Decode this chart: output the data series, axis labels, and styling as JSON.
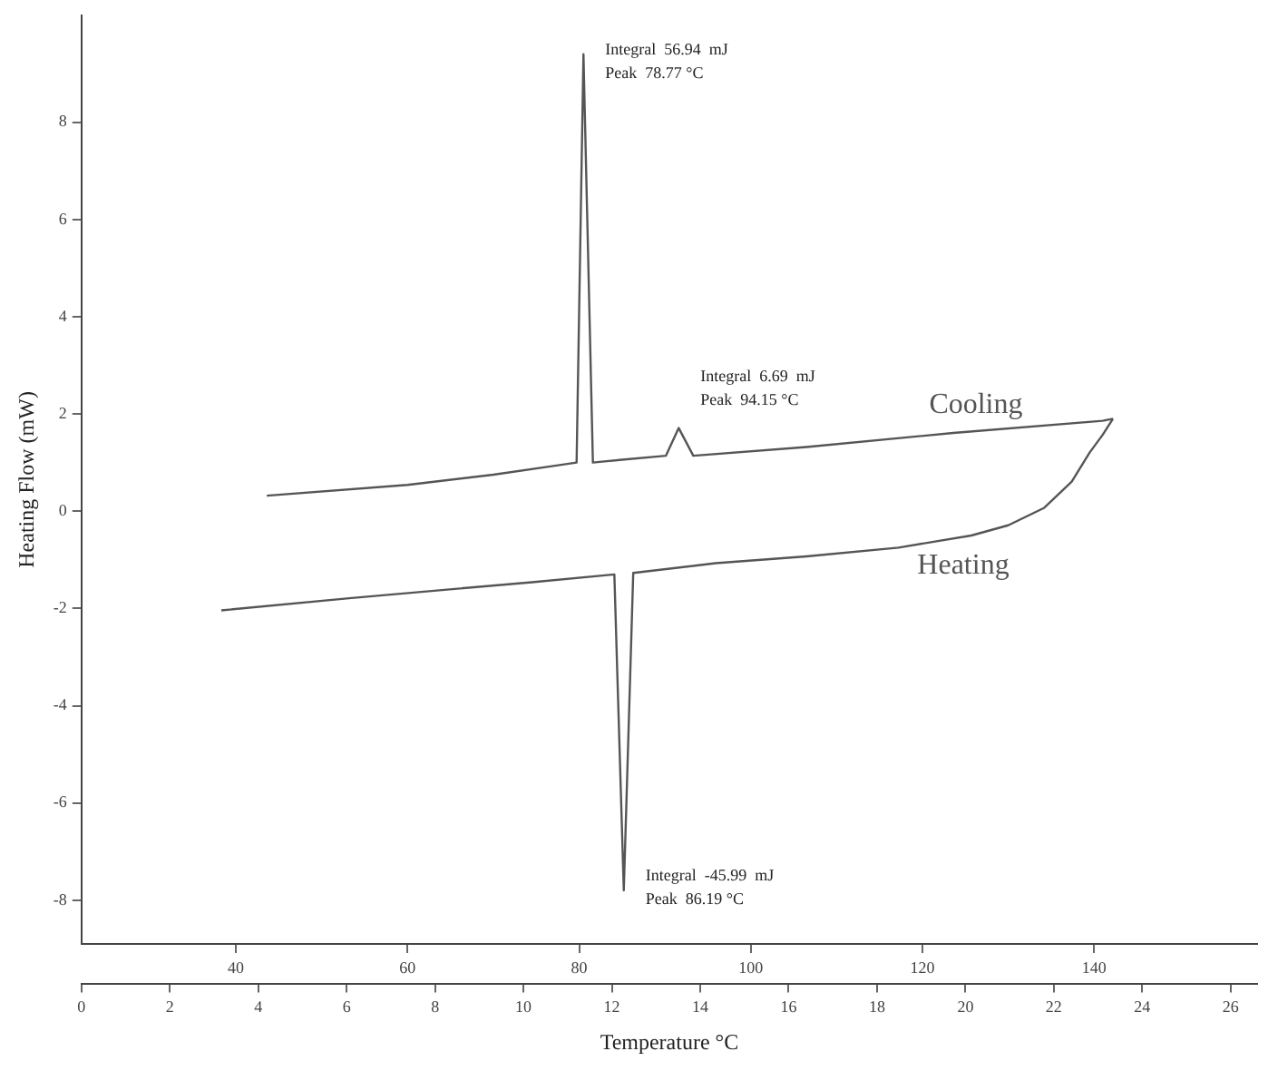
{
  "chart_data": {
    "type": "line",
    "xlabel": "Temperature °C",
    "ylabel": "Heating Flow (mW)",
    "xlim": [
      22,
      159
    ],
    "xticks": [
      40,
      60,
      80,
      100,
      120,
      140
    ],
    "x2lim": [
      0,
      26.6
    ],
    "x2ticks": [
      0,
      2,
      4,
      6,
      8,
      10,
      12,
      14,
      16,
      18,
      20,
      22,
      24,
      26
    ],
    "ylim": [
      -8.9,
      10.2
    ],
    "yticks": [
      -8,
      -6,
      -4,
      -2,
      0,
      2,
      4,
      6,
      8
    ],
    "series": [
      {
        "name": "Cooling",
        "color": "#555555",
        "x": [
          43.6,
          60,
          70,
          77,
          79.7,
          80.5,
          81.6,
          85,
          90.1,
          91.6,
          93.3,
          106.5,
          123.6,
          141,
          142.2
        ],
        "values": [
          0.32,
          0.54,
          0.75,
          0.93,
          1.0,
          9.4,
          1.0,
          1.06,
          1.14,
          1.71,
          1.14,
          1.32,
          1.61,
          1.86,
          1.9
        ]
      },
      {
        "name": "Heating",
        "color": "#555555",
        "x": [
          38.3,
          53.2,
          74.5,
          84.1,
          85.2,
          86.3,
          95.9,
          106.5,
          117.2,
          125.7,
          130,
          134.2,
          137.4,
          139.5,
          141,
          142.2
        ],
        "values": [
          -2.04,
          -1.79,
          -1.46,
          -1.3,
          -7.8,
          -1.27,
          -1.07,
          -0.93,
          -0.75,
          -0.5,
          -0.29,
          0.07,
          0.61,
          1.21,
          1.57,
          1.9
        ]
      }
    ],
    "annotations": [
      {
        "text": "Integral  56.94  mJ",
        "x": 80.5,
        "y": 9.4
      },
      {
        "text": "Peak  78.77 °C",
        "x": 80.5,
        "y": 9.4
      },
      {
        "text": "Integral  6.69  mJ",
        "x": 91.6,
        "y": 1.71
      },
      {
        "text": "Peak  94.15 °C",
        "x": 91.6,
        "y": 1.71
      },
      {
        "text": "Integral  -45.99  mJ",
        "x": 85.2,
        "y": -7.8
      },
      {
        "text": "Peak  86.19 °C",
        "x": 85.2,
        "y": -7.8
      }
    ],
    "grid": false,
    "legend": false,
    "marker": "none",
    "line_style": "solid"
  }
}
